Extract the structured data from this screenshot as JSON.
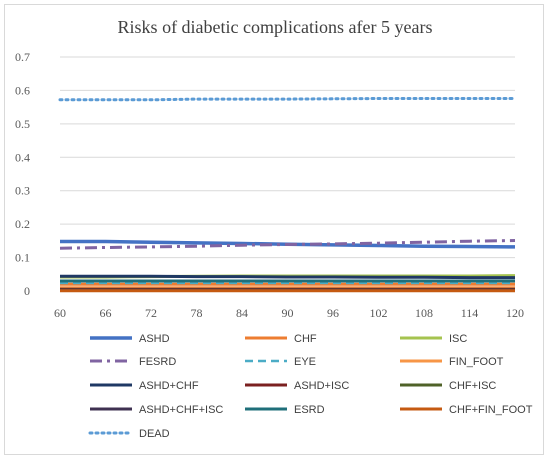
{
  "chart_data": {
    "type": "line",
    "title": "Risks of diabetic complications afer 5 years",
    "xlabel": "",
    "ylabel": "",
    "x": [
      60,
      66,
      72,
      78,
      84,
      90,
      96,
      102,
      108,
      114,
      120
    ],
    "x_tick_labels": [
      "60",
      "66",
      "72",
      "78",
      "84",
      "90",
      "96",
      "102",
      "108",
      "114",
      "120"
    ],
    "xlim": [
      60,
      120
    ],
    "ylim": [
      0,
      0.7
    ],
    "y_ticks": [
      0,
      0.1,
      0.2,
      0.3,
      0.4,
      0.5,
      0.6,
      0.7
    ],
    "y_tick_labels": [
      "0",
      "0.1",
      "0.2",
      "0.3",
      "0.4",
      "0.5",
      "0.6",
      "0.7"
    ],
    "grid": "horizontal",
    "legend_position": "bottom",
    "series": [
      {
        "name": "ASHD",
        "color": "#4472c4",
        "dash": "solid",
        "width": 3.5,
        "values": [
          0.148,
          0.148,
          0.146,
          0.144,
          0.142,
          0.14,
          0.138,
          0.136,
          0.134,
          0.133,
          0.132
        ]
      },
      {
        "name": "CHF",
        "color": "#ed7d31",
        "dash": "solid",
        "width": 3,
        "values": [
          0.02,
          0.02,
          0.02,
          0.02,
          0.02,
          0.02,
          0.02,
          0.02,
          0.02,
          0.02,
          0.02
        ]
      },
      {
        "name": "ISC",
        "color": "#a5c34f",
        "dash": "solid",
        "width": 3,
        "values": [
          0.042,
          0.042,
          0.043,
          0.044,
          0.045,
          0.045,
          0.045,
          0.045,
          0.045,
          0.045,
          0.046
        ]
      },
      {
        "name": "FESRD",
        "color": "#8064a2",
        "dash": "dashdot",
        "width": 3,
        "values": [
          0.128,
          0.13,
          0.132,
          0.134,
          0.137,
          0.139,
          0.141,
          0.143,
          0.146,
          0.149,
          0.151
        ]
      },
      {
        "name": "EYE",
        "color": "#4bacc6",
        "dash": "dash",
        "width": 2.5,
        "values": [
          0.024,
          0.024,
          0.024,
          0.024,
          0.024,
          0.024,
          0.024,
          0.024,
          0.024,
          0.024,
          0.024
        ]
      },
      {
        "name": "FIN_FOOT",
        "color": "#f79646",
        "dash": "solid",
        "width": 3,
        "values": [
          0.01,
          0.01,
          0.01,
          0.01,
          0.01,
          0.01,
          0.01,
          0.01,
          0.01,
          0.01,
          0.01
        ]
      },
      {
        "name": "ASHD+CHF",
        "color": "#1f3864",
        "dash": "solid",
        "width": 3,
        "values": [
          0.044,
          0.044,
          0.044,
          0.043,
          0.043,
          0.042,
          0.042,
          0.041,
          0.041,
          0.04,
          0.04
        ]
      },
      {
        "name": "ASHD+ISC",
        "color": "#7b2020",
        "dash": "solid",
        "width": 3,
        "values": [
          0.005,
          0.005,
          0.005,
          0.005,
          0.005,
          0.005,
          0.005,
          0.005,
          0.005,
          0.005,
          0.005
        ]
      },
      {
        "name": "CHF+ISC",
        "color": "#4f6228",
        "dash": "solid",
        "width": 3,
        "values": [
          0.003,
          0.003,
          0.003,
          0.003,
          0.003,
          0.003,
          0.003,
          0.003,
          0.003,
          0.003,
          0.003
        ]
      },
      {
        "name": "ASHD+CHF+ISC",
        "color": "#3f3151",
        "dash": "solid",
        "width": 3,
        "values": [
          0.002,
          0.002,
          0.002,
          0.002,
          0.002,
          0.002,
          0.002,
          0.002,
          0.002,
          0.002,
          0.002
        ]
      },
      {
        "name": "ESRD",
        "color": "#1f6f7a",
        "dash": "solid",
        "width": 3,
        "values": [
          0.03,
          0.03,
          0.03,
          0.03,
          0.03,
          0.03,
          0.03,
          0.03,
          0.03,
          0.03,
          0.03
        ]
      },
      {
        "name": "CHF+FIN_FOOT",
        "color": "#c55a11",
        "dash": "solid",
        "width": 3,
        "values": [
          0.001,
          0.001,
          0.001,
          0.001,
          0.001,
          0.001,
          0.001,
          0.001,
          0.001,
          0.001,
          0.001
        ]
      },
      {
        "name": "DEAD",
        "color": "#5b9bd5",
        "dash": "dot",
        "width": 3,
        "values": [
          0.572,
          0.572,
          0.572,
          0.574,
          0.574,
          0.574,
          0.575,
          0.576,
          0.576,
          0.576,
          0.576
        ]
      }
    ]
  }
}
